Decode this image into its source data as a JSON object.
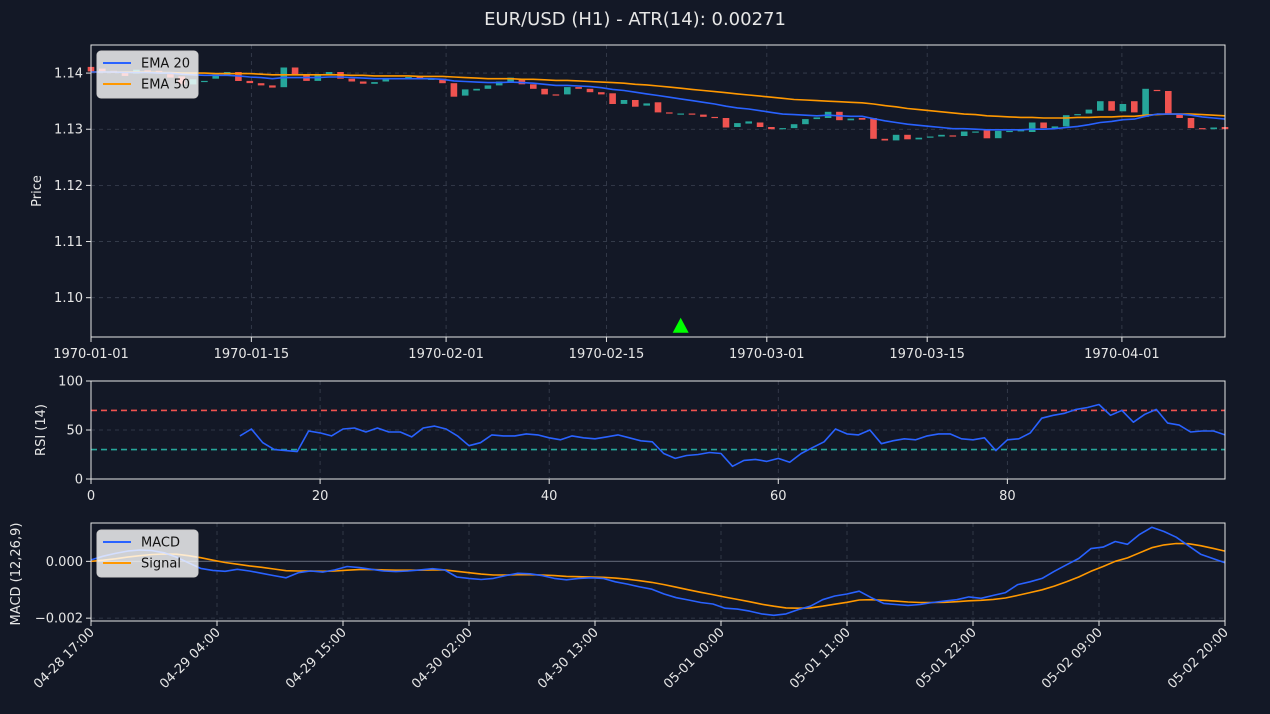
{
  "colors": {
    "background": "#131826",
    "up": "#26a69a",
    "down": "#ef5350",
    "ema20": "#2962ff",
    "ema50": "#ff9800",
    "rsi": "#2962ff",
    "rsi_over": "#ef5350",
    "rsi_under": "#26a69a",
    "macd": "#2962ff",
    "signal": "#ff9800",
    "marker": "#00ff00",
    "grid": "#3a4050",
    "axis": "#e6e6e6"
  },
  "chart_data": [
    {
      "type": "candlestick",
      "title": "EUR/USD (H1) - ATR(14): 0.00271",
      "ylabel": "Price",
      "ylim": [
        1.093,
        1.145
      ],
      "xlim": [
        "1970-01-01",
        "1970-04-10"
      ],
      "x_tick_labels": [
        "1970-01-01",
        "1970-01-15",
        "1970-02-01",
        "1970-02-15",
        "1970-03-01",
        "1970-03-15",
        "1970-04-01"
      ],
      "y_ticks": [
        1.1,
        1.11,
        1.12,
        1.13,
        1.14
      ],
      "y_tick_labels": [
        "1.10",
        "1.11",
        "1.12",
        "1.13",
        "1.14"
      ],
      "grid": true,
      "legend": {
        "position": "top-left",
        "entries": [
          "EMA 20",
          "EMA 50"
        ]
      },
      "candles": [
        [
          1.1411,
          1.1403
        ],
        [
          1.1408,
          1.1402
        ],
        [
          1.1404,
          1.14
        ],
        [
          1.14,
          1.1395
        ],
        [
          1.1399,
          1.1406
        ],
        [
          1.1405,
          1.1403
        ],
        [
          1.1404,
          1.1399
        ],
        [
          1.1398,
          1.1392
        ],
        [
          1.1394,
          1.138
        ],
        [
          1.138,
          1.1389
        ],
        [
          1.1384,
          1.1386
        ],
        [
          1.139,
          1.1398
        ],
        [
          1.1396,
          1.1402
        ],
        [
          1.1402,
          1.1386
        ],
        [
          1.1386,
          1.1382
        ],
        [
          1.1382,
          1.1378
        ],
        [
          1.1378,
          1.1374
        ],
        [
          1.1375,
          1.141
        ],
        [
          1.141,
          1.1398
        ],
        [
          1.1398,
          1.1386
        ],
        [
          1.1386,
          1.1396
        ],
        [
          1.1396,
          1.1402
        ],
        [
          1.1402,
          1.139
        ],
        [
          1.139,
          1.1385
        ],
        [
          1.1385,
          1.1381
        ],
        [
          1.1381,
          1.1384
        ],
        [
          1.1385,
          1.139
        ],
        [
          1.139,
          1.1391
        ],
        [
          1.1391,
          1.1393
        ],
        [
          1.1393,
          1.1391
        ],
        [
          1.1388,
          1.139
        ],
        [
          1.139,
          1.1382
        ],
        [
          1.1382,
          1.1358
        ],
        [
          1.136,
          1.1371
        ],
        [
          1.1369,
          1.1372
        ],
        [
          1.1372,
          1.1378
        ],
        [
          1.1378,
          1.1385
        ],
        [
          1.1385,
          1.1392
        ],
        [
          1.1388,
          1.138
        ],
        [
          1.138,
          1.1372
        ],
        [
          1.1372,
          1.1362
        ],
        [
          1.1362,
          1.136
        ],
        [
          1.1362,
          1.1375
        ],
        [
          1.1375,
          1.1372
        ],
        [
          1.1372,
          1.1366
        ],
        [
          1.1366,
          1.1362
        ],
        [
          1.1364,
          1.1345
        ],
        [
          1.1345,
          1.1352
        ],
        [
          1.1352,
          1.134
        ],
        [
          1.1342,
          1.1346
        ],
        [
          1.1348,
          1.133
        ],
        [
          1.133,
          1.1329
        ],
        [
          1.1328,
          1.1328
        ],
        [
          1.1328,
          1.1326
        ],
        [
          1.1326,
          1.1322
        ],
        [
          1.1322,
          1.132
        ],
        [
          1.132,
          1.1303
        ],
        [
          1.1304,
          1.1311
        ],
        [
          1.131,
          1.1314
        ],
        [
          1.1312,
          1.1304
        ],
        [
          1.1304,
          1.13
        ],
        [
          1.13,
          1.1302
        ],
        [
          1.1302,
          1.1309
        ],
        [
          1.1309,
          1.1318
        ],
        [
          1.1318,
          1.1321
        ],
        [
          1.132,
          1.1331
        ],
        [
          1.1331,
          1.1316
        ],
        [
          1.1316,
          1.1319
        ],
        [
          1.132,
          1.1317
        ],
        [
          1.132,
          1.1283
        ],
        [
          1.1283,
          1.128
        ],
        [
          1.128,
          1.129
        ],
        [
          1.129,
          1.1282
        ],
        [
          1.1282,
          1.1285
        ],
        [
          1.1285,
          1.1287
        ],
        [
          1.1287,
          1.129
        ],
        [
          1.1289,
          1.1288
        ],
        [
          1.1288,
          1.1296
        ],
        [
          1.1296,
          1.1296
        ],
        [
          1.1298,
          1.1284
        ],
        [
          1.1284,
          1.1297
        ],
        [
          1.1296,
          1.1297
        ],
        [
          1.1296,
          1.13
        ],
        [
          1.1295,
          1.1312
        ],
        [
          1.1312,
          1.1302
        ],
        [
          1.1302,
          1.1305
        ],
        [
          1.1305,
          1.1325
        ],
        [
          1.1325,
          1.1327
        ],
        [
          1.1328,
          1.1335
        ],
        [
          1.1333,
          1.135
        ],
        [
          1.135,
          1.1333
        ],
        [
          1.1332,
          1.1345
        ],
        [
          1.135,
          1.133
        ],
        [
          1.1322,
          1.1372
        ],
        [
          1.137,
          1.1368
        ],
        [
          1.1368,
          1.1328
        ],
        [
          1.1326,
          1.132
        ],
        [
          1.132,
          1.1302
        ],
        [
          1.1302,
          1.13
        ],
        [
          1.13,
          1.1303
        ],
        [
          1.1304,
          1.13
        ]
      ],
      "ema20": [
        1.1402,
        1.1402,
        1.1402,
        1.1401,
        1.1401,
        1.1401,
        1.14,
        1.14,
        1.1398,
        1.1397,
        1.1396,
        1.1396,
        1.1396,
        1.1395,
        1.1393,
        1.1392,
        1.139,
        1.1392,
        1.1392,
        1.1392,
        1.1392,
        1.1393,
        1.1393,
        1.1392,
        1.1391,
        1.139,
        1.139,
        1.139,
        1.139,
        1.139,
        1.139,
        1.1389,
        1.1386,
        1.1385,
        1.1384,
        1.1383,
        1.1383,
        1.1384,
        1.1383,
        1.1382,
        1.138,
        1.1378,
        1.1378,
        1.1377,
        1.1376,
        1.1374,
        1.1371,
        1.1369,
        1.1366,
        1.1363,
        1.136,
        1.1357,
        1.1354,
        1.1351,
        1.1348,
        1.1345,
        1.1341,
        1.1338,
        1.1336,
        1.1333,
        1.133,
        1.1327,
        1.1326,
        1.1325,
        1.1324,
        1.1325,
        1.1324,
        1.1323,
        1.1323,
        1.1319,
        1.1315,
        1.1312,
        1.1309,
        1.1307,
        1.1305,
        1.1303,
        1.1301,
        1.1301,
        1.13,
        1.1299,
        1.1299,
        1.1299,
        1.1299,
        1.13,
        1.13,
        1.1301,
        1.1303,
        1.1305,
        1.1308,
        1.1312,
        1.1314,
        1.1317,
        1.1318,
        1.1323,
        1.1327,
        1.1327,
        1.1327,
        1.1325,
        1.1322,
        1.132,
        1.1318
      ],
      "ema50": [
        1.1402,
        1.1402,
        1.1402,
        1.1402,
        1.1402,
        1.1402,
        1.1401,
        1.1401,
        1.14,
        1.14,
        1.14,
        1.1399,
        1.1399,
        1.1399,
        1.1399,
        1.1398,
        1.1397,
        1.1397,
        1.1397,
        1.1397,
        1.1397,
        1.1397,
        1.1397,
        1.1396,
        1.1396,
        1.1395,
        1.1395,
        1.1395,
        1.1395,
        1.1394,
        1.1394,
        1.1394,
        1.1393,
        1.1392,
        1.1391,
        1.139,
        1.139,
        1.139,
        1.1389,
        1.1389,
        1.1388,
        1.1387,
        1.1387,
        1.1386,
        1.1385,
        1.1384,
        1.1383,
        1.1382,
        1.138,
        1.1379,
        1.1377,
        1.1375,
        1.1373,
        1.1371,
        1.1369,
        1.1367,
        1.1365,
        1.1363,
        1.1361,
        1.1359,
        1.1357,
        1.1355,
        1.1353,
        1.1352,
        1.1351,
        1.135,
        1.1349,
        1.1348,
        1.1347,
        1.1345,
        1.1342,
        1.134,
        1.1337,
        1.1335,
        1.1333,
        1.1331,
        1.1329,
        1.1327,
        1.1326,
        1.1324,
        1.1323,
        1.1322,
        1.1321,
        1.1321,
        1.132,
        1.132,
        1.132,
        1.1321,
        1.1321,
        1.1322,
        1.1322,
        1.1323,
        1.1323,
        1.1325,
        1.1326,
        1.1327,
        1.1327,
        1.1327,
        1.1326,
        1.1325,
        1.1324
      ],
      "markers": [
        {
          "type": "buy",
          "x_index": 52,
          "price": 1.095
        }
      ]
    },
    {
      "type": "line",
      "ylabel": "RSI (14)",
      "xlim": [
        0,
        99
      ],
      "ylim": [
        0,
        100
      ],
      "x_ticks": [
        0,
        20,
        40,
        60,
        80
      ],
      "y_ticks": [
        0,
        50,
        100
      ],
      "grid": true,
      "levels": [
        {
          "value": 70,
          "color": "#ef5350"
        },
        {
          "value": 30,
          "color": "#26a69a"
        }
      ],
      "x": [
        13,
        14,
        15,
        16,
        17,
        18,
        19,
        20,
        21,
        22,
        23,
        24,
        25,
        26,
        27,
        28,
        29,
        30,
        31,
        32,
        33,
        34,
        35,
        36,
        37,
        38,
        39,
        40,
        41,
        42,
        43,
        44,
        45,
        46,
        47,
        48,
        49,
        50,
        51,
        52,
        53,
        54,
        55,
        56,
        57,
        58,
        59,
        60,
        61,
        62,
        63,
        64,
        65,
        66,
        67,
        68,
        69,
        70,
        71,
        72,
        73,
        74,
        75,
        76,
        77,
        78,
        79,
        80,
        81,
        82,
        83,
        84,
        85,
        86,
        87,
        88,
        89,
        90,
        91,
        92,
        93,
        94,
        95,
        96,
        97,
        98,
        99
      ],
      "values": [
        44,
        51,
        37,
        30,
        29,
        28,
        49,
        47,
        44,
        51,
        52,
        48,
        52,
        48,
        48,
        43,
        52,
        54,
        51,
        44,
        34,
        37,
        45,
        44,
        44,
        46,
        45,
        42,
        40,
        44,
        42,
        41,
        43,
        45,
        42,
        39,
        38,
        26,
        21,
        24,
        25,
        27,
        26,
        13,
        19,
        20,
        18,
        21,
        17,
        26,
        32,
        38,
        51,
        46,
        45,
        50,
        36,
        39,
        41,
        40,
        44,
        46,
        46,
        41,
        40,
        42,
        29,
        40,
        41,
        47,
        62,
        65,
        67,
        71,
        73,
        76,
        65,
        70,
        58,
        66,
        71,
        57,
        55,
        48,
        49,
        49,
        45
      ]
    },
    {
      "type": "line",
      "ylabel": "MACD (12,26,9)",
      "ylim": [
        -0.0021,
        0.00135
      ],
      "y_ticks": [
        -0.002,
        0.0
      ],
      "y_tick_labels": [
        "−0.002",
        "0.000"
      ],
      "x_tick_labels": [
        "04-28 17:00",
        "04-29 04:00",
        "04-29 15:00",
        "04-30 02:00",
        "04-30 13:00",
        "05-01 00:00",
        "05-01 11:00",
        "05-01 22:00",
        "05-02 09:00",
        "05-02 20:00"
      ],
      "grid": true,
      "legend": {
        "position": "top-left",
        "entries": [
          "MACD",
          "Signal"
        ]
      },
      "series": [
        {
          "name": "MACD",
          "values": [
            5e-05,
            0.00018,
            0.00028,
            0.00036,
            0.0004,
            0.00038,
            0.0003,
            0.00015,
            -5e-05,
            -0.00025,
            -0.00032,
            -0.00035,
            -0.00028,
            -0.00034,
            -0.00042,
            -0.0005,
            -0.00058,
            -0.0004,
            -0.00034,
            -0.00038,
            -0.0003,
            -0.00018,
            -0.00022,
            -0.00028,
            -0.00034,
            -0.00036,
            -0.00034,
            -0.0003,
            -0.00026,
            -0.0003,
            -0.00055,
            -0.0006,
            -0.00064,
            -0.0006,
            -0.0005,
            -0.00042,
            -0.00044,
            -0.0005,
            -0.0006,
            -0.00065,
            -0.0006,
            -0.00058,
            -0.0006,
            -0.00072,
            -0.0008,
            -0.0009,
            -0.00098,
            -0.00115,
            -0.00128,
            -0.00136,
            -0.00145,
            -0.0015,
            -0.00165,
            -0.00168,
            -0.00175,
            -0.00185,
            -0.0019,
            -0.00185,
            -0.0017,
            -0.00158,
            -0.00135,
            -0.00122,
            -0.00115,
            -0.00105,
            -0.00128,
            -0.00148,
            -0.00152,
            -0.00155,
            -0.00152,
            -0.00145,
            -0.0014,
            -0.00135,
            -0.00125,
            -0.0013,
            -0.0012,
            -0.0011,
            -0.00082,
            -0.00072,
            -0.0006,
            -0.00035,
            -0.00012,
            0.0001,
            0.00045,
            0.0005,
            0.0007,
            0.0006,
            0.00095,
            0.0012,
            0.00105,
            0.00085,
            0.00055,
            0.00025,
            0.0001,
            -5e-05
          ]
        },
        {
          "name": "Signal",
          "values": [
            0.0,
            4e-05,
            9e-05,
            0.00015,
            0.0002,
            0.00024,
            0.00026,
            0.00025,
            0.0002,
            0.00013,
            4e-05,
            -4e-05,
            -0.0001,
            -0.00016,
            -0.00021,
            -0.00027,
            -0.00033,
            -0.00034,
            -0.00034,
            -0.00035,
            -0.00034,
            -0.00031,
            -0.00029,
            -0.00029,
            -0.0003,
            -0.00031,
            -0.00031,
            -0.00031,
            -0.0003,
            -0.0003,
            -0.00035,
            -0.0004,
            -0.00045,
            -0.00048,
            -0.00048,
            -0.00047,
            -0.00047,
            -0.00048,
            -0.0005,
            -0.00053,
            -0.00054,
            -0.00055,
            -0.00056,
            -0.00059,
            -0.00063,
            -0.00068,
            -0.00074,
            -0.00082,
            -0.00091,
            -0.001,
            -0.00109,
            -0.00117,
            -0.00126,
            -0.00134,
            -0.00142,
            -0.00151,
            -0.00158,
            -0.00164,
            -0.00165,
            -0.00164,
            -0.00158,
            -0.00151,
            -0.00144,
            -0.00136,
            -0.00135,
            -0.00137,
            -0.0014,
            -0.00143,
            -0.00145,
            -0.00145,
            -0.00144,
            -0.00142,
            -0.00139,
            -0.00137,
            -0.00134,
            -0.00129,
            -0.0012,
            -0.0011,
            -0.001,
            -0.00087,
            -0.00072,
            -0.00055,
            -0.00035,
            -0.00018,
            0.0,
            0.00012,
            0.0003,
            0.00048,
            0.00058,
            0.00063,
            0.00062,
            0.00055,
            0.00046,
            0.00036
          ]
        }
      ]
    }
  ]
}
